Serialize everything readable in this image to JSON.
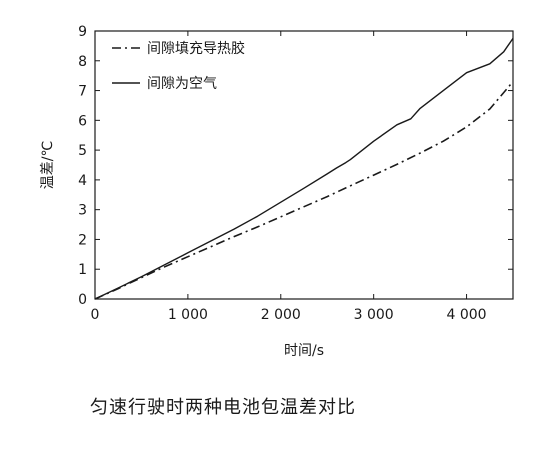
{
  "chart_data": {
    "type": "line",
    "xlabel": "时间/s",
    "ylabel": "温差/℃",
    "xlim": [
      0,
      4500
    ],
    "ylim": [
      0,
      9
    ],
    "x_ticks": [
      0,
      1000,
      2000,
      3000,
      4000
    ],
    "x_tick_labels": [
      "0",
      "1 000",
      "2 000",
      "3 000",
      "4 000"
    ],
    "y_ticks": [
      0,
      1,
      2,
      3,
      4,
      5,
      6,
      7,
      8,
      9
    ],
    "y_tick_labels": [
      "0",
      "1",
      "2",
      "3",
      "4",
      "5",
      "6",
      "7",
      "8",
      "9"
    ],
    "grid": false,
    "legend_position": "top-left",
    "series": [
      {
        "name": "间隙填充导热胶",
        "style": "dash-dot",
        "x": [
          0,
          250,
          500,
          750,
          1000,
          1250,
          1500,
          1750,
          2000,
          2250,
          2500,
          2750,
          3000,
          3250,
          3500,
          3750,
          4000,
          4250,
          4500
        ],
        "y": [
          0,
          0.35,
          0.72,
          1.08,
          1.42,
          1.76,
          2.1,
          2.42,
          2.76,
          3.1,
          3.44,
          3.8,
          4.16,
          4.52,
          4.9,
          5.3,
          5.78,
          6.38,
          7.3
        ]
      },
      {
        "name": "间隙为空气",
        "style": "solid",
        "x": [
          0,
          250,
          500,
          750,
          1000,
          1250,
          1500,
          1750,
          2000,
          2250,
          2500,
          2600,
          2700,
          2750,
          3000,
          3250,
          3400,
          3500,
          3750,
          4000,
          4250,
          4400,
          4500
        ],
        "y": [
          0,
          0.37,
          0.75,
          1.15,
          1.55,
          1.95,
          2.35,
          2.78,
          3.25,
          3.72,
          4.2,
          4.4,
          4.58,
          4.68,
          5.3,
          5.85,
          6.05,
          6.4,
          7.0,
          7.6,
          7.9,
          8.3,
          8.75
        ]
      }
    ]
  },
  "caption": "匀速行驶时两种电池包温差对比"
}
